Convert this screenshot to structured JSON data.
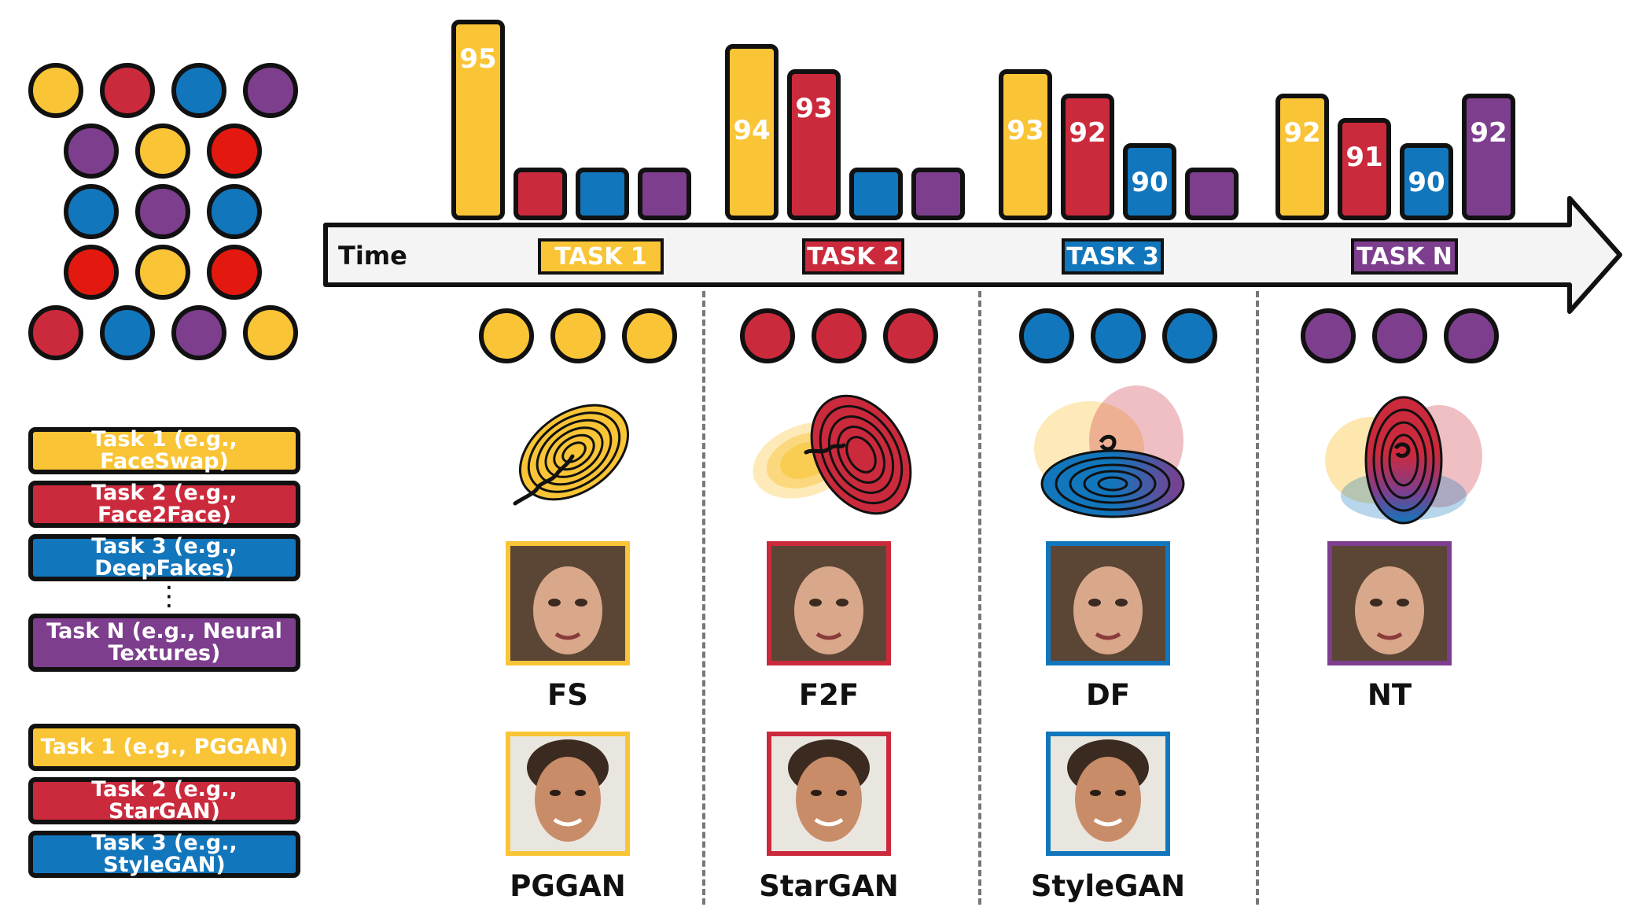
{
  "colors": {
    "yellow": "#F9C435",
    "red": "#CB2A3C",
    "blue": "#1276BC",
    "purple": "#7E3E8E",
    "brightred": "#E31910"
  },
  "timeline": {
    "label": "Time"
  },
  "tasks": [
    {
      "tag": "TASK 1",
      "color": "yellow",
      "bars": [
        95,
        null,
        null,
        null
      ],
      "dataset_caption": "FS",
      "gan_caption": "PGGAN"
    },
    {
      "tag": "TASK 2",
      "color": "red",
      "bars": [
        94,
        93,
        null,
        null
      ],
      "dataset_caption": "F2F",
      "gan_caption": "StarGAN"
    },
    {
      "tag": "TASK 3",
      "color": "blue",
      "bars": [
        93,
        92,
        90,
        null
      ],
      "dataset_caption": "DF",
      "gan_caption": "StyleGAN"
    },
    {
      "tag": "TASK N",
      "color": "purple",
      "bars": [
        92,
        91,
        90,
        92
      ],
      "dataset_caption": "NT",
      "gan_caption": ""
    }
  ],
  "legend_datasets": [
    {
      "text": "Task 1 (e.g., FaceSwap)",
      "color": "yellow"
    },
    {
      "text": "Task 2 (e.g., Face2Face)",
      "color": "red"
    },
    {
      "text": "Task 3 (e.g., DeepFakes)",
      "color": "blue"
    },
    {
      "text": "Task N (e.g., Neural Textures)",
      "color": "purple"
    }
  ],
  "legend_gans": [
    {
      "text": "Task 1 (e.g., PGGAN)",
      "color": "yellow"
    },
    {
      "text": "Task 2 (e.g., StarGAN)",
      "color": "red"
    },
    {
      "text": "Task 3 (e.g., StyleGAN)",
      "color": "blue"
    }
  ],
  "ellipsis": "⋮",
  "mixed_pool": [
    "yellow",
    "red",
    "blue",
    "purple",
    "purple",
    "yellow",
    "brightred",
    "blue",
    "purple",
    "blue",
    "brightred",
    "yellow",
    "brightred",
    "red",
    "blue",
    "purple",
    "yellow"
  ]
}
